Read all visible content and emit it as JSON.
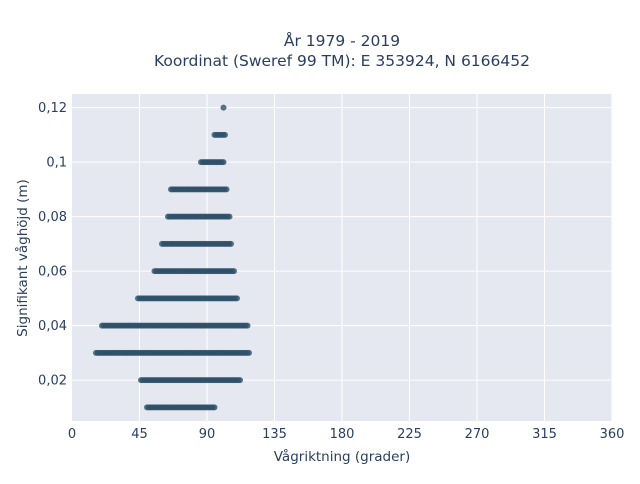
{
  "chart_data": {
    "type": "scatter",
    "title": "År 1979 - 2019",
    "subtitle": "Koordinat (Sweref 99 TM): E 353924, N 6166452",
    "xlabel": "Vågriktning (grader)",
    "ylabel": "Signifikant våghöjd (m)",
    "xlim": [
      0,
      360
    ],
    "ylim": [
      0.005,
      0.125
    ],
    "x_ticks": [
      0,
      45,
      90,
      135,
      180,
      225,
      270,
      315,
      360
    ],
    "x_tick_labels": [
      "0",
      "45",
      "90",
      "135",
      "180",
      "225",
      "270",
      "315",
      "360"
    ],
    "y_ticks": [
      0.02,
      0.04,
      0.06,
      0.08,
      0.1,
      0.12
    ],
    "y_tick_labels": [
      "0,02",
      "0,04",
      "0,06",
      "0,08",
      "0,1",
      "0,12"
    ],
    "grid": true,
    "legend": "none",
    "marker_color": "#2e5068",
    "plot_background": "#e5e8f0",
    "grid_color": "#ffffff",
    "rows": [
      {
        "y": 0.12,
        "x_min": 101,
        "x_max": 101
      },
      {
        "y": 0.11,
        "x_min": 95,
        "x_max": 102
      },
      {
        "y": 0.1,
        "x_min": 86,
        "x_max": 101
      },
      {
        "y": 0.09,
        "x_min": 66,
        "x_max": 103
      },
      {
        "y": 0.08,
        "x_min": 64,
        "x_max": 105
      },
      {
        "y": 0.07,
        "x_min": 60,
        "x_max": 106
      },
      {
        "y": 0.06,
        "x_min": 55,
        "x_max": 108
      },
      {
        "y": 0.05,
        "x_min": 44,
        "x_max": 110
      },
      {
        "y": 0.04,
        "x_min": 20,
        "x_max": 117
      },
      {
        "y": 0.03,
        "x_min": 16,
        "x_max": 118
      },
      {
        "y": 0.02,
        "x_min": 46,
        "x_max": 112
      },
      {
        "y": 0.01,
        "x_min": 50,
        "x_max": 95
      }
    ]
  }
}
